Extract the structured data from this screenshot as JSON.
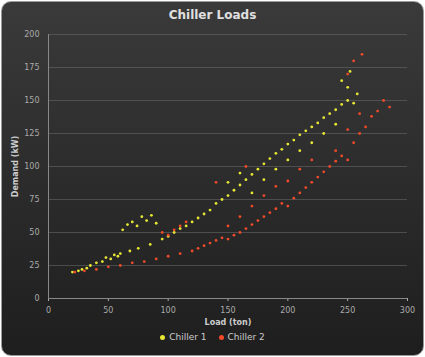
{
  "chart_data": {
    "type": "scatter",
    "title": "Chiller Loads",
    "x_label": "Load (ton)",
    "y_label": "Demand (kW)",
    "xlim": [
      0,
      300
    ],
    "xticks": [
      0,
      50,
      100,
      150,
      200,
      250,
      300
    ],
    "ylim": [
      0,
      200
    ],
    "yticks": [
      0,
      25,
      50,
      75,
      100,
      125,
      150,
      175,
      200
    ],
    "grid": true,
    "legend": "bottom",
    "marker": "circle",
    "series": [
      {
        "name": "Chiller 1",
        "color": "#e6e633",
        "x": [
          20,
          25,
          28,
          32,
          35,
          40,
          45,
          48,
          52,
          55,
          58,
          62,
          66,
          70,
          74,
          78,
          82,
          86,
          90,
          60,
          68,
          75,
          85,
          95,
          100,
          105,
          110,
          115,
          120,
          125,
          130,
          135,
          140,
          145,
          150,
          150,
          155,
          160,
          160,
          165,
          170,
          170,
          175,
          180,
          180,
          185,
          190,
          190,
          195,
          200,
          200,
          205,
          210,
          210,
          215,
          220,
          220,
          225,
          230,
          230,
          235,
          240,
          240,
          245,
          250,
          250,
          255,
          258,
          245,
          252
        ],
        "values": [
          20,
          21,
          22,
          23,
          25,
          27,
          28,
          31,
          30,
          33,
          32,
          52,
          56,
          58,
          55,
          62,
          59,
          63,
          57,
          34,
          36,
          38,
          41,
          45,
          47,
          50,
          53,
          55,
          58,
          61,
          64,
          67,
          72,
          75,
          78,
          88,
          82,
          86,
          95,
          90,
          94,
          80,
          98,
          102,
          90,
          106,
          110,
          98,
          113,
          117,
          105,
          120,
          124,
          112,
          127,
          130,
          118,
          133,
          137,
          125,
          140,
          143,
          132,
          147,
          150,
          160,
          148,
          155,
          165,
          172
        ]
      },
      {
        "name": "Chiller 2",
        "color": "#f04a2a",
        "x": [
          22,
          30,
          40,
          50,
          60,
          70,
          80,
          90,
          100,
          95,
          100,
          105,
          110,
          115,
          110,
          120,
          125,
          130,
          135,
          140,
          145,
          150,
          150,
          155,
          160,
          160,
          165,
          170,
          170,
          175,
          180,
          180,
          185,
          190,
          190,
          195,
          200,
          200,
          205,
          210,
          210,
          215,
          220,
          220,
          225,
          230,
          235,
          240,
          240,
          245,
          250,
          250,
          255,
          260,
          260,
          265,
          270,
          275,
          280,
          255,
          262,
          250,
          285,
          140,
          165
        ],
        "values": [
          20,
          21,
          22,
          24,
          25,
          27,
          28,
          30,
          32,
          50,
          48,
          52,
          55,
          58,
          34,
          36,
          38,
          40,
          42,
          44,
          46,
          45,
          55,
          48,
          50,
          62,
          53,
          56,
          70,
          59,
          62,
          78,
          65,
          68,
          85,
          72,
          70,
          89,
          76,
          80,
          98,
          84,
          88,
          105,
          92,
          96,
          100,
          104,
          112,
          108,
          105,
          128,
          118,
          125,
          140,
          130,
          138,
          142,
          150,
          180,
          185,
          170,
          145,
          88,
          100
        ]
      }
    ]
  }
}
